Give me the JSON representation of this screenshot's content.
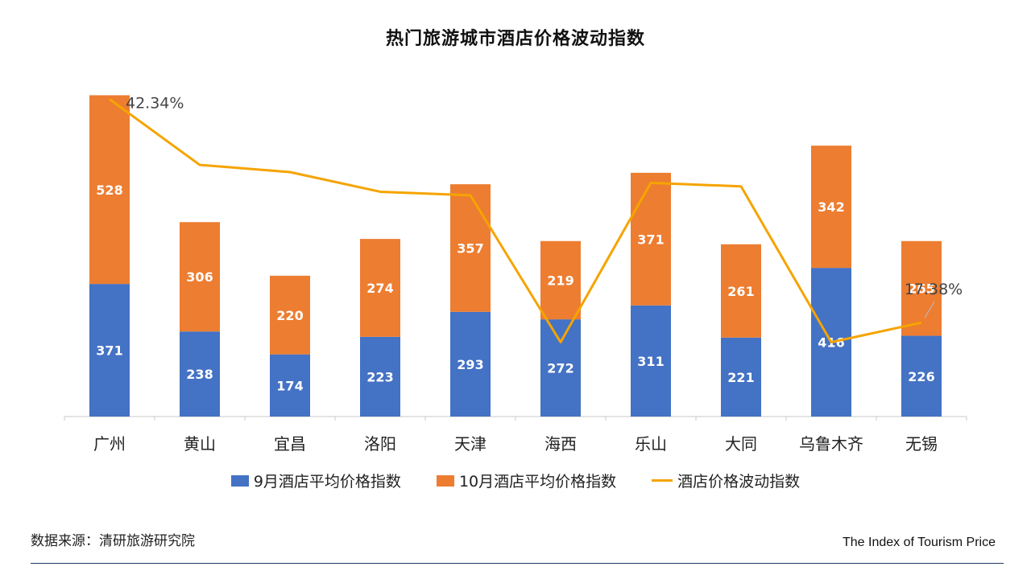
{
  "title": "热门旅游城市酒店价格波动指数",
  "source": "数据来源：清研旅游研究院",
  "footer_brand": "The Index of Tourism Price",
  "colors": {
    "september": "#4472C4",
    "october": "#ED7D31",
    "volatility": "#F5A400"
  },
  "chart_data": {
    "type": "bar",
    "stacked": true,
    "categories": [
      "广州",
      "黄山",
      "宜昌",
      "洛阳",
      "天津",
      "海西",
      "乐山",
      "大同",
      "乌鲁木齐",
      "无锡"
    ],
    "series": [
      {
        "name": "9月酒店平均价格指数",
        "type": "bar",
        "values": [
          371,
          238,
          174,
          223,
          293,
          272,
          311,
          221,
          416,
          226
        ]
      },
      {
        "name": "10月酒店平均价格指数",
        "type": "bar",
        "values": [
          528,
          306,
          220,
          274,
          357,
          219,
          371,
          261,
          342,
          265
        ]
      },
      {
        "name": "酒店价格波动指数",
        "type": "line",
        "axis": "secondary",
        "values": [
          42.34,
          35.0,
          34.2,
          32.0,
          31.6,
          15.2,
          33.0,
          32.6,
          15.2,
          17.38
        ]
      }
    ],
    "line_labels": [
      {
        "index": 0,
        "text": "42.34%"
      },
      {
        "index": 9,
        "text": "17.38%"
      }
    ],
    "ylim": [
      0,
      900
    ],
    "y2lim": [
      13,
      43
    ],
    "grid": false,
    "legend": "bottom"
  }
}
